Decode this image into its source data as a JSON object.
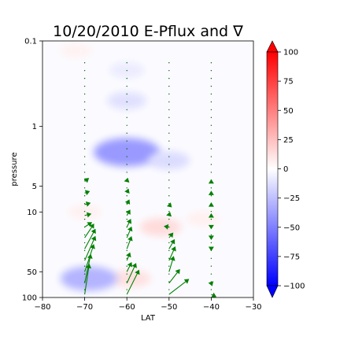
{
  "chart_data": {
    "type": "heatmap",
    "title": "10/20/2010 E-Pflux and ∇",
    "xlabel": "LAT",
    "ylabel": "pressure",
    "xlim": [
      -80,
      -30
    ],
    "ylim": [
      100,
      0.1
    ],
    "y_scale": "log",
    "y_inverted": true,
    "x_ticks": [
      -80,
      -70,
      -60,
      -50,
      -40,
      -30
    ],
    "x_tick_labels": [
      "−80",
      "−70",
      "−60",
      "−50",
      "−40",
      "−30"
    ],
    "y_ticks": [
      0.1,
      1,
      5,
      10,
      50,
      100
    ],
    "y_tick_labels": [
      "0.1",
      "1",
      "5",
      "10",
      "50",
      "100"
    ],
    "colorbar": {
      "colormap": "bwr",
      "range": [
        -100,
        100
      ],
      "ticks": [
        100,
        75,
        50,
        25,
        0,
        -25,
        -50,
        -75,
        -100
      ],
      "tick_labels": [
        "100",
        "75",
        "50",
        "25",
        "0",
        "−25",
        "−50",
        "−75",
        "−100"
      ],
      "extend": "both"
    },
    "divergence_features": [
      {
        "lat": -60,
        "pressure": 0.22,
        "value": -8
      },
      {
        "lat": -60,
        "pressure": 0.5,
        "value": -12
      },
      {
        "lat": -60,
        "pressure": 2.0,
        "value": -40
      },
      {
        "lat": -50,
        "pressure": 2.5,
        "value": -14
      },
      {
        "lat": -70,
        "pressure": 10,
        "value": 6
      },
      {
        "lat": -52,
        "pressure": 15,
        "value": 14
      },
      {
        "lat": -42,
        "pressure": 12,
        "value": 6
      },
      {
        "lat": -59,
        "pressure": 60,
        "value": 12
      },
      {
        "lat": -69,
        "pressure": 60,
        "value": -30
      },
      {
        "lat": -72,
        "pressure": 0.13,
        "value": 5
      }
    ],
    "vector_color": "#008000",
    "vectors": [
      {
        "lat": -70,
        "pressure": 4.4,
        "u": 0.25,
        "v": 0.2
      },
      {
        "lat": -70,
        "pressure": 6.0,
        "u": 0.3,
        "v": 0.1
      },
      {
        "lat": -70,
        "pressure": 8.2,
        "u": 0.35,
        "v": 0.1
      },
      {
        "lat": -70,
        "pressure": 11,
        "u": 0.4,
        "v": 0.1
      },
      {
        "lat": -70,
        "pressure": 15,
        "u": 0.45,
        "v": 0.3
      },
      {
        "lat": -70,
        "pressure": 20,
        "u": 0.6,
        "v": 0.9
      },
      {
        "lat": -70,
        "pressure": 27,
        "u": 0.7,
        "v": 1.3
      },
      {
        "lat": -70,
        "pressure": 37,
        "u": 0.7,
        "v": 1.6
      },
      {
        "lat": -70,
        "pressure": 50,
        "u": 0.6,
        "v": 1.8
      },
      {
        "lat": -70,
        "pressure": 68,
        "u": 0.4,
        "v": 1.9
      },
      {
        "lat": -70,
        "pressure": 92,
        "u": 0.3,
        "v": 2.0
      },
      {
        "lat": -60,
        "pressure": 4.4,
        "u": 0.05,
        "v": 0.2
      },
      {
        "lat": -60,
        "pressure": 6.0,
        "u": 0.1,
        "v": 0.25
      },
      {
        "lat": -60,
        "pressure": 8.2,
        "u": 0.15,
        "v": 0.3
      },
      {
        "lat": -60,
        "pressure": 11,
        "u": 0.2,
        "v": 0.35
      },
      {
        "lat": -60,
        "pressure": 15,
        "u": 0.25,
        "v": 0.5
      },
      {
        "lat": -60,
        "pressure": 20,
        "u": 0.3,
        "v": 0.7
      },
      {
        "lat": -60,
        "pressure": 27,
        "u": 0.3,
        "v": 0.8
      },
      {
        "lat": -60,
        "pressure": 37,
        "u": 0.2,
        "v": 0.5
      },
      {
        "lat": -60,
        "pressure": 50,
        "u": 0.3,
        "v": 0.6
      },
      {
        "lat": -60,
        "pressure": 68,
        "u": 0.6,
        "v": 1.3
      },
      {
        "lat": -60,
        "pressure": 92,
        "u": 0.8,
        "v": 1.6
      },
      {
        "lat": -50,
        "pressure": 8.2,
        "u": 0.15,
        "v": -0.15
      },
      {
        "lat": -50,
        "pressure": 11,
        "u": 0.05,
        "v": 0.2
      },
      {
        "lat": -50,
        "pressure": 15,
        "u": -0.3,
        "v": 0.05
      },
      {
        "lat": -50,
        "pressure": 20,
        "u": 0.25,
        "v": 0.3
      },
      {
        "lat": -50,
        "pressure": 27,
        "u": 0.35,
        "v": 0.6
      },
      {
        "lat": -50,
        "pressure": 37,
        "u": 0.4,
        "v": 0.9
      },
      {
        "lat": -50,
        "pressure": 50,
        "u": 0.3,
        "v": 1.0
      },
      {
        "lat": -50,
        "pressure": 68,
        "u": 0.7,
        "v": 0.9
      },
      {
        "lat": -50,
        "pressure": 92,
        "u": 1.3,
        "v": 1.0
      },
      {
        "lat": -40,
        "pressure": 4.4,
        "u": 0.0,
        "v": 0.1
      },
      {
        "lat": -40,
        "pressure": 6.0,
        "u": 0.0,
        "v": 0.1
      },
      {
        "lat": -40,
        "pressure": 8.2,
        "u": 0.0,
        "v": 0.1
      },
      {
        "lat": -40,
        "pressure": 11,
        "u": 0.0,
        "v": 0.1
      },
      {
        "lat": -40,
        "pressure": 15,
        "u": 0.0,
        "v": -0.1
      },
      {
        "lat": -40,
        "pressure": 20,
        "u": 0.0,
        "v": -0.1
      },
      {
        "lat": -40,
        "pressure": 27,
        "u": 0.0,
        "v": -0.1
      },
      {
        "lat": -40,
        "pressure": 68,
        "u": 0.05,
        "v": -0.15
      },
      {
        "lat": -40,
        "pressure": 92,
        "u": 0.3,
        "v": -0.15
      }
    ]
  }
}
